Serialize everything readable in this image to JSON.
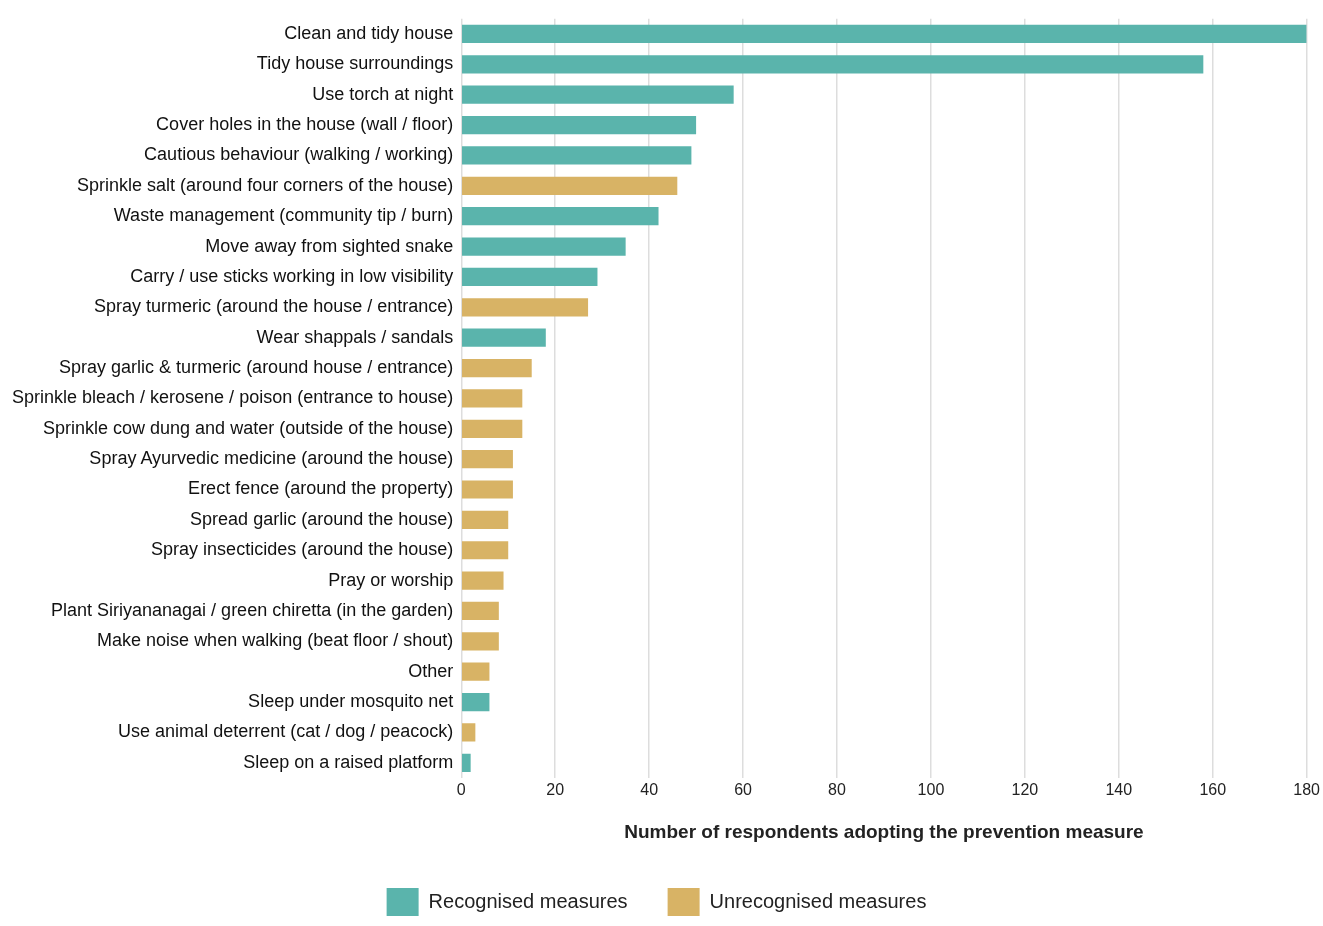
{
  "chart_data": {
    "type": "bar",
    "orientation": "horizontal",
    "stacked": true,
    "xlabel": "Number of respondents adopting the prevention measure",
    "categories": [
      "Clean and tidy house",
      "Tidy house surroundings",
      "Use torch at night",
      "Cover holes in the house (wall / floor)",
      "Cautious behaviour (walking / working)",
      "Sprinkle salt (around four corners of the house)",
      "Waste management (community tip / burn)",
      "Move away from sighted snake",
      "Carry / use sticks working in low visibility",
      "Spray turmeric (around the house / entrance)",
      "Wear shappals / sandals",
      "Spray garlic & turmeric (around house / entrance)",
      "Sprinkle bleach / kerosene / poison (entrance to house)",
      "Sprinkle cow dung and water (outside of the house)",
      "Spray Ayurvedic medicine (around the house)",
      "Erect fence (around the property)",
      "Spread garlic (around the house)",
      "Spray insecticides (around the house)",
      "Pray or worship",
      "Plant Siriyananagai / green chiretta (in the garden)",
      "Make noise when walking (beat floor / shout)",
      "Other",
      "Sleep under mosquito net",
      "Use animal deterrent (cat / dog / peacock)",
      "Sleep on a raised platform"
    ],
    "series": [
      {
        "name": "Recognised measures",
        "color": "#5ab4ac",
        "values": [
          180,
          158,
          58,
          50,
          49,
          null,
          42,
          35,
          29,
          null,
          18,
          null,
          null,
          null,
          null,
          null,
          null,
          null,
          null,
          null,
          null,
          null,
          6,
          null,
          2
        ]
      },
      {
        "name": "Unrecognised measures",
        "color": "#d8b365",
        "values": [
          null,
          null,
          null,
          null,
          null,
          46,
          null,
          null,
          null,
          27,
          null,
          15,
          13,
          13,
          11,
          11,
          10,
          10,
          9,
          8,
          8,
          6,
          null,
          3,
          null
        ]
      }
    ],
    "xlim": [
      0,
      180
    ],
    "xticks": [
      0,
      20,
      40,
      60,
      80,
      100,
      120,
      140,
      160,
      180
    ],
    "grid": "x",
    "legend": "bottom"
  }
}
